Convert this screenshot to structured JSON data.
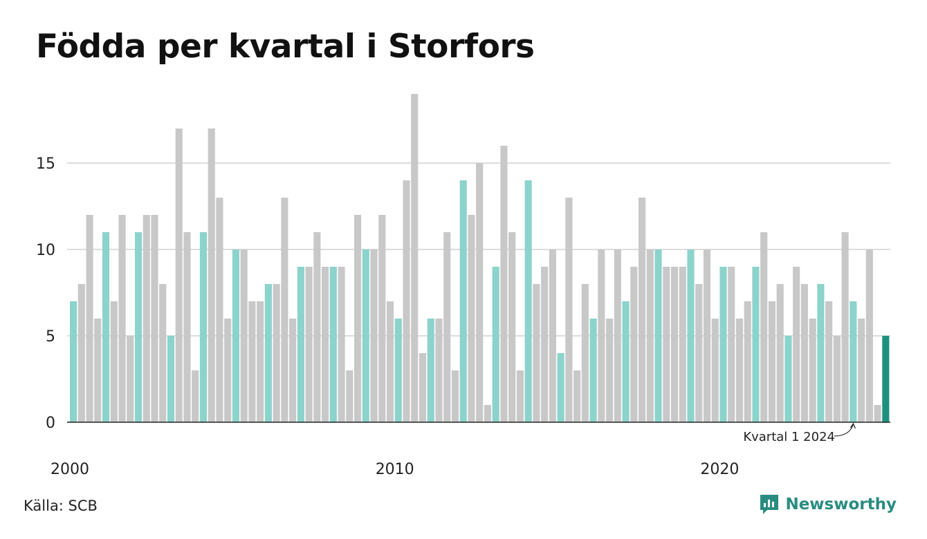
{
  "title": "Födda per kvartal i Storfors",
  "source": "Källa: SCB",
  "brand": {
    "name": "Newsworthy",
    "icon": "newsworthy-logo-icon"
  },
  "colors": {
    "q1": "#8cd3cb",
    "other": "#c8c8c8",
    "latest": "#1f9080",
    "grid": "#dcdcdc",
    "axis": "#222222",
    "brand": "#2a8c80"
  },
  "chart_data": {
    "type": "bar",
    "title": "Födda per kvartal i Storfors",
    "xlabel": "",
    "ylabel": "",
    "ylim": [
      0,
      19
    ],
    "yticks": [
      0,
      5,
      10,
      15
    ],
    "xticks": [
      "2000",
      "2010",
      "2020"
    ],
    "grid": true,
    "start": "2000 Q1",
    "annotation": {
      "text": "Kvartal 1 2024",
      "target": "2024 Q1"
    },
    "values": [
      7,
      8,
      12,
      6,
      11,
      7,
      12,
      5,
      11,
      12,
      12,
      8,
      5,
      17,
      11,
      3,
      11,
      17,
      13,
      6,
      10,
      10,
      7,
      7,
      8,
      8,
      13,
      6,
      9,
      9,
      11,
      9,
      9,
      9,
      3,
      12,
      10,
      10,
      12,
      7,
      6,
      14,
      19,
      4,
      6,
      6,
      11,
      3,
      14,
      12,
      15,
      1,
      9,
      16,
      11,
      3,
      14,
      8,
      9,
      10,
      4,
      13,
      3,
      8,
      6,
      10,
      6,
      10,
      7,
      9,
      13,
      10,
      10,
      9,
      9,
      9,
      10,
      8,
      10,
      6,
      9,
      9,
      6,
      7,
      9,
      11,
      7,
      8,
      5,
      9,
      8,
      6,
      8,
      7,
      5,
      11,
      7,
      6,
      10,
      1,
      5
    ]
  }
}
